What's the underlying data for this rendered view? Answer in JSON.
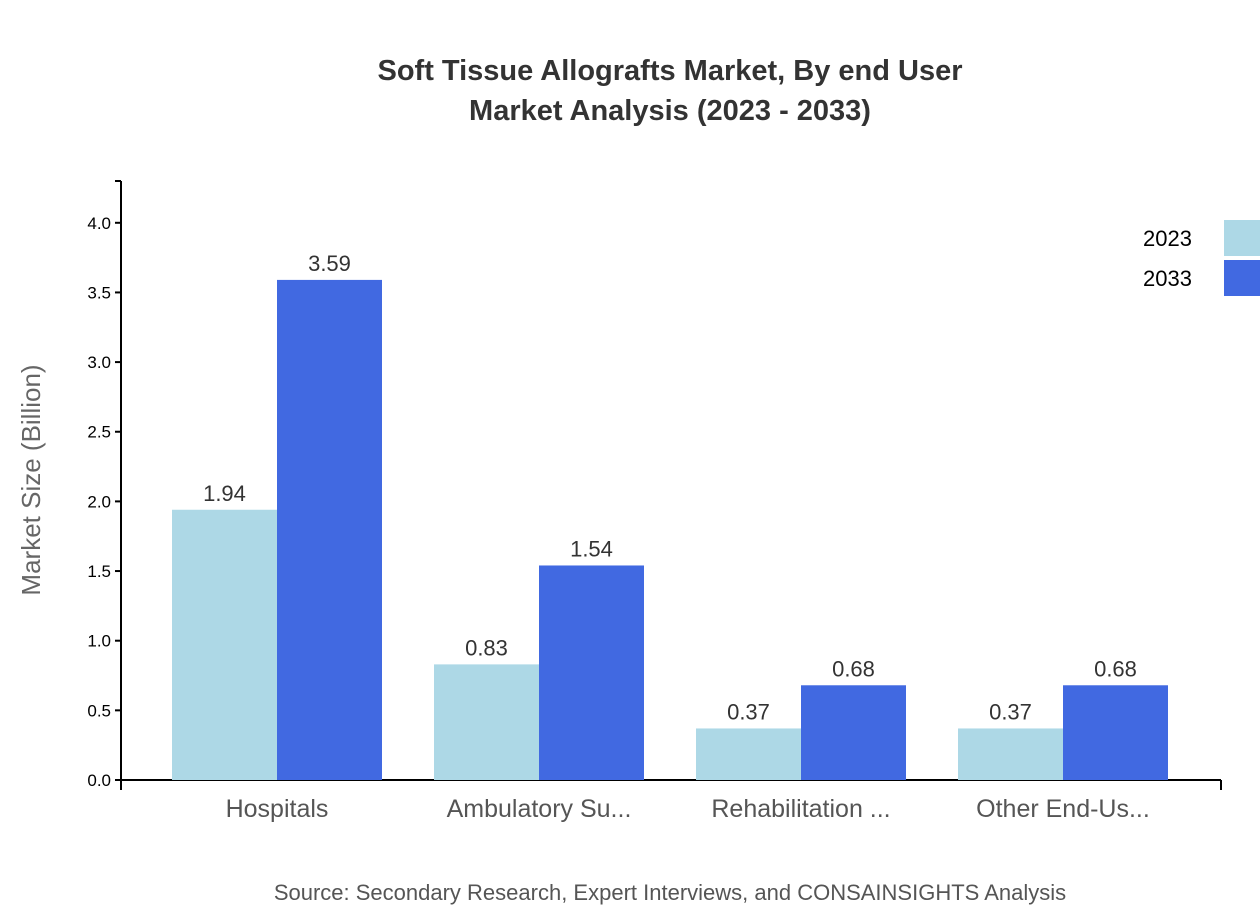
{
  "chart_data": {
    "type": "bar",
    "title": "Soft Tissue Allografts Market, By end User",
    "subtitle": "Market Analysis (2023 - 2033)",
    "xlabel": "",
    "ylabel": "Market Size (Billion)",
    "ylim": [
      0,
      4.3
    ],
    "yticks": [
      "0.0",
      "0.5",
      "1.0",
      "1.5",
      "2.0",
      "2.5",
      "3.0",
      "3.5",
      "4.0"
    ],
    "categories": [
      "Hospitals",
      "Ambulatory Su...",
      "Rehabilitation ...",
      "Other End-Us..."
    ],
    "series": [
      {
        "name": "2023",
        "color": "#ADD8E6",
        "values": [
          1.94,
          0.83,
          0.37,
          0.37
        ],
        "labels": [
          "1.94",
          "0.83",
          "0.37",
          "0.37"
        ]
      },
      {
        "name": "2033",
        "color": "#4169E1",
        "values": [
          3.59,
          1.54,
          0.68,
          0.68
        ],
        "labels": [
          "3.59",
          "1.54",
          "0.68",
          "0.68"
        ]
      }
    ],
    "legend_position": "top-right",
    "grid": false,
    "source": "Source: Secondary Research, Expert Interviews, and CONSAINSIGHTS Analysis"
  }
}
